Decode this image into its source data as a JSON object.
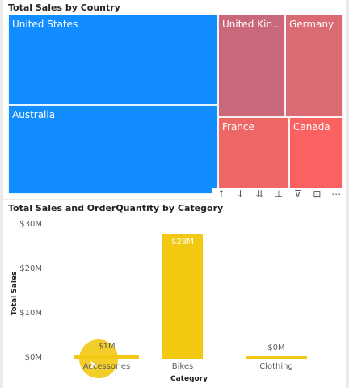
{
  "treemap": {
    "title": "Total Sales by Country",
    "tiles": [
      {
        "label": "United States",
        "color": "#118dff"
      },
      {
        "label": "Australia",
        "color": "#118dff"
      },
      {
        "label": "United Kin...",
        "color": "#c9677b"
      },
      {
        "label": "Germany",
        "color": "#da6a73"
      },
      {
        "label": "France",
        "color": "#ee6767"
      },
      {
        "label": "Canada",
        "color": "#fa6161"
      }
    ],
    "header_icons": [
      "arrow-up-icon",
      "arrow-down-icon",
      "double-arrow-down-icon",
      "expand-hierarchy-icon",
      "filter-icon",
      "focus-mode-icon",
      "more-options-icon"
    ],
    "header_glyphs": [
      "↑",
      "↓",
      "⇊",
      "⊥",
      "⊽",
      "⊡",
      "⋯"
    ]
  },
  "chart_data": {
    "type": "bar",
    "title": "Total Sales and OrderQuantity by Category",
    "xlabel": "Category",
    "ylabel": "Total Sales",
    "categories": [
      "Accessories",
      "Bikes",
      "Clothing"
    ],
    "values": [
      1,
      28,
      0
    ],
    "data_labels": [
      "$1M",
      "$28M",
      "$0M"
    ],
    "ylim": [
      0,
      30
    ],
    "yticks": [
      "$0M",
      "$10M",
      "$20M",
      "$30M"
    ],
    "ytick_values": [
      0,
      10,
      20,
      30
    ],
    "color": "#f2c811",
    "grid": false
  }
}
